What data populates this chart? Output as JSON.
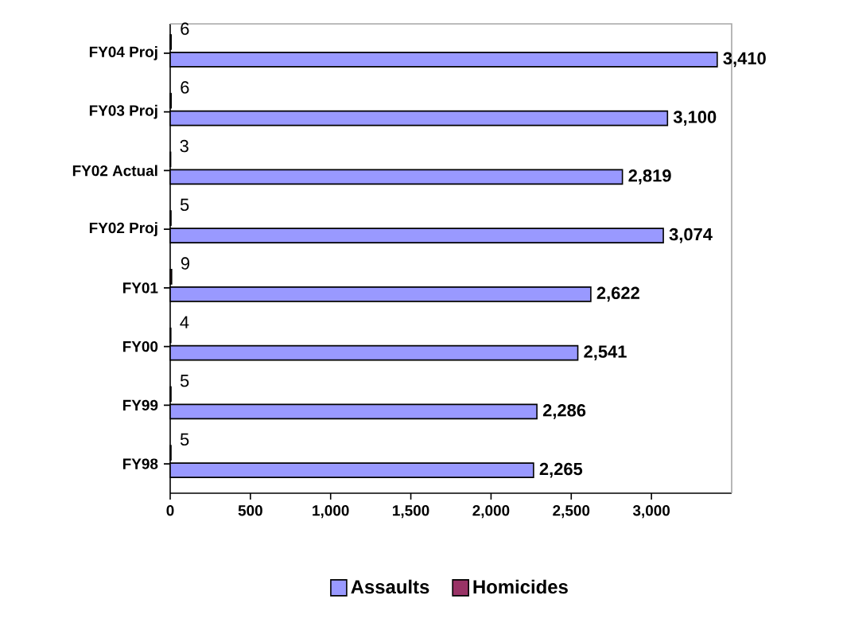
{
  "chart_data": {
    "type": "bar",
    "orientation": "horizontal",
    "categories": [
      "FY04 Proj",
      "FY03 Proj",
      "FY02 Actual",
      "FY02 Proj",
      "FY01",
      "FY00",
      "FY99",
      "FY98"
    ],
    "series": [
      {
        "name": "Assaults",
        "color": "#9999ff",
        "values": [
          3410,
          3100,
          2819,
          3074,
          2622,
          2541,
          2286,
          2265
        ],
        "value_labels": [
          "3,410",
          "3,100",
          "2,819",
          "3,074",
          "2,622",
          "2,541",
          "2,286",
          "2,265"
        ]
      },
      {
        "name": "Homicides",
        "color": "#993366",
        "values": [
          6,
          6,
          3,
          5,
          9,
          4,
          5,
          5
        ],
        "value_labels": [
          "6",
          "6",
          "3",
          "5",
          "9",
          "4",
          "5",
          "5"
        ]
      }
    ],
    "xlim": [
      0,
      3500
    ],
    "xticks": [
      0,
      500,
      {
        "value": 1000,
        "label": "1,000"
      },
      {
        "value": 1500,
        "label": "1,500"
      },
      {
        "value": 2000,
        "label": "2,000"
      },
      {
        "value": 2500,
        "label": "2,500"
      },
      {
        "value": 3000,
        "label": "3,000"
      }
    ],
    "legend": "bottom"
  }
}
